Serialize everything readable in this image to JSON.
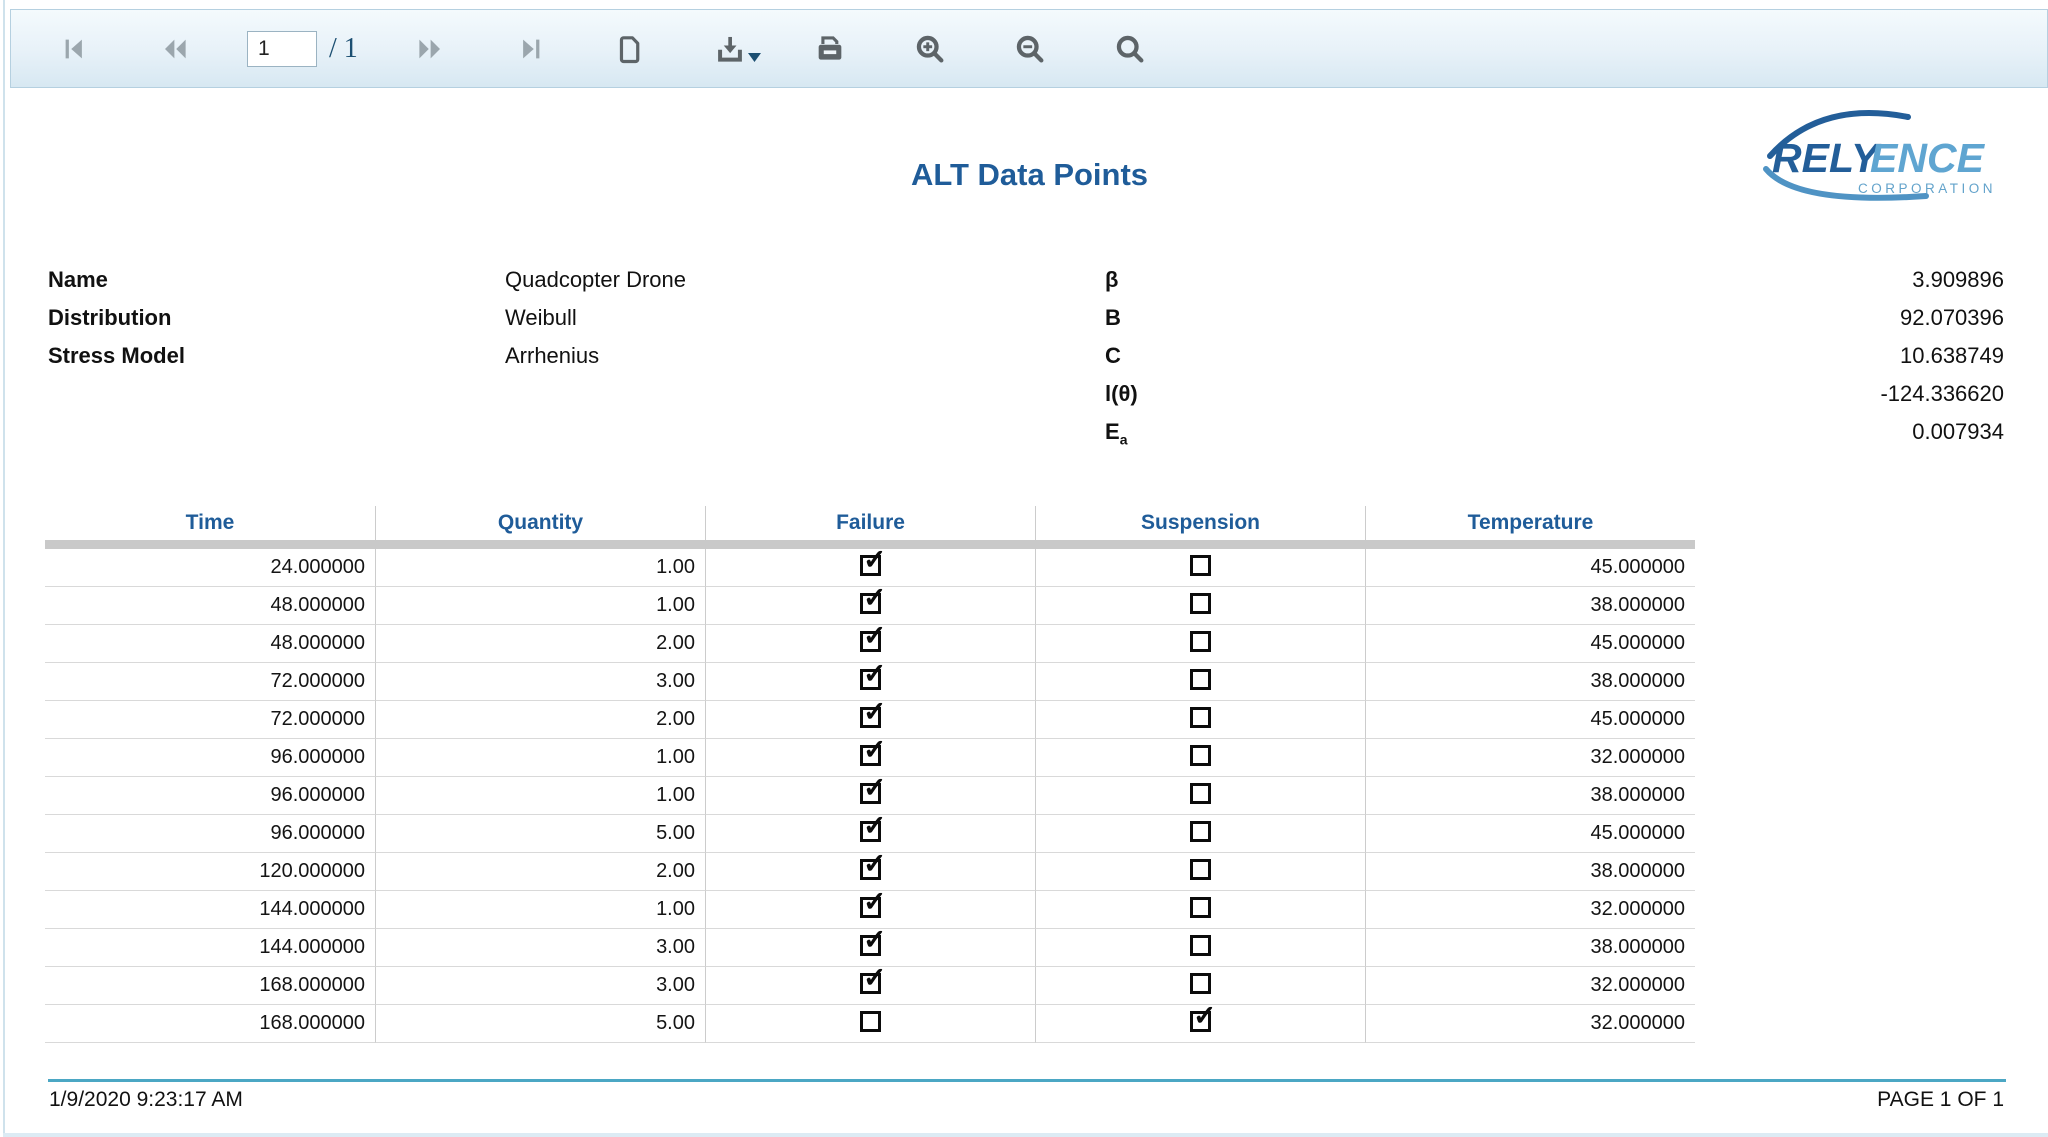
{
  "toolbar": {
    "page_input": "1",
    "page_total_label": "/ 1",
    "icons": [
      {
        "name": "first-page-icon"
      },
      {
        "name": "previous-page-icon"
      },
      {
        "name": "next-page-icon"
      },
      {
        "name": "last-page-icon"
      },
      {
        "name": "single-page-view-icon"
      },
      {
        "name": "download-icon"
      },
      {
        "name": "print-icon"
      },
      {
        "name": "zoom-in-icon"
      },
      {
        "name": "zoom-out-icon"
      },
      {
        "name": "search-icon"
      }
    ]
  },
  "report": {
    "title": "ALT Data Points",
    "logo": {
      "part1": "RELY",
      "part2": "ENCE",
      "subtitle": "CORPORATION"
    },
    "info_left": [
      {
        "label": "Name",
        "value": "Quadcopter Drone"
      },
      {
        "label": "Distribution",
        "value": "Weibull"
      },
      {
        "label": "Stress Model",
        "value": "Arrhenius"
      }
    ],
    "info_right": [
      {
        "label": "β",
        "value": "3.909896"
      },
      {
        "label": "B",
        "value": "92.070396"
      },
      {
        "label": "C",
        "value": "10.638749"
      },
      {
        "label": "l(θ)",
        "value": "-124.336620"
      },
      {
        "label": "E",
        "label_sub": "a",
        "value": "0.007934"
      }
    ],
    "table": {
      "columns": [
        "Time",
        "Quantity",
        "Failure",
        "Suspension",
        "Temperature"
      ],
      "rows": [
        {
          "time": "24.000000",
          "quantity": "1.00",
          "failure": true,
          "suspension": false,
          "temperature": "45.000000"
        },
        {
          "time": "48.000000",
          "quantity": "1.00",
          "failure": true,
          "suspension": false,
          "temperature": "38.000000"
        },
        {
          "time": "48.000000",
          "quantity": "2.00",
          "failure": true,
          "suspension": false,
          "temperature": "45.000000"
        },
        {
          "time": "72.000000",
          "quantity": "3.00",
          "failure": true,
          "suspension": false,
          "temperature": "38.000000"
        },
        {
          "time": "72.000000",
          "quantity": "2.00",
          "failure": true,
          "suspension": false,
          "temperature": "45.000000"
        },
        {
          "time": "96.000000",
          "quantity": "1.00",
          "failure": true,
          "suspension": false,
          "temperature": "32.000000"
        },
        {
          "time": "96.000000",
          "quantity": "1.00",
          "failure": true,
          "suspension": false,
          "temperature": "38.000000"
        },
        {
          "time": "96.000000",
          "quantity": "5.00",
          "failure": true,
          "suspension": false,
          "temperature": "45.000000"
        },
        {
          "time": "120.000000",
          "quantity": "2.00",
          "failure": true,
          "suspension": false,
          "temperature": "38.000000"
        },
        {
          "time": "144.000000",
          "quantity": "1.00",
          "failure": true,
          "suspension": false,
          "temperature": "32.000000"
        },
        {
          "time": "144.000000",
          "quantity": "3.00",
          "failure": true,
          "suspension": false,
          "temperature": "38.000000"
        },
        {
          "time": "168.000000",
          "quantity": "3.00",
          "failure": true,
          "suspension": false,
          "temperature": "32.000000"
        },
        {
          "time": "168.000000",
          "quantity": "5.00",
          "failure": false,
          "suspension": true,
          "temperature": "32.000000"
        }
      ]
    },
    "footer": {
      "timestamp": "1/9/2020 9:23:17 AM",
      "page_label": "PAGE 1 OF 1"
    }
  },
  "colors": {
    "title_blue": "#1f5c99",
    "header_blue": "#1f5c99",
    "footer_line": "#4ba7c4",
    "logo_dark_blue": "#235e99",
    "logo_light_blue": "#5fa5d1",
    "toolbar_border": "#b5d0e0"
  }
}
